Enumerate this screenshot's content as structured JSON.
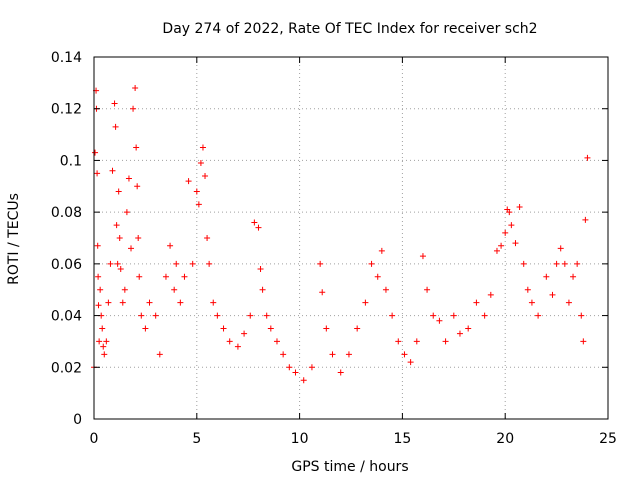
{
  "chart_data": {
    "type": "scatter",
    "title": "Day 274 of 2022, Rate Of TEC Index for receiver sch2",
    "xlabel": "GPS time / hours",
    "ylabel": "ROTI / TECUs",
    "xlim": [
      0,
      25
    ],
    "ylim": [
      0,
      0.14
    ],
    "x_ticks": [
      0,
      5,
      10,
      15,
      20,
      25
    ],
    "x_tick_labels": [
      "0",
      "5",
      "10",
      "15",
      "20",
      "25"
    ],
    "y_ticks": [
      0,
      0.02,
      0.04,
      0.06,
      0.08,
      0.1,
      0.12,
      0.14
    ],
    "y_tick_labels": [
      "0",
      "0.02",
      "0.04",
      "0.06",
      "0.08",
      "0.1",
      "0.12",
      "0.14"
    ],
    "grid": true,
    "marker": "plus",
    "marker_color": "#ff0000",
    "series": [
      {
        "x": [
          0.0,
          0.05,
          0.1,
          0.12,
          0.15,
          0.18,
          0.2,
          0.22,
          0.25,
          0.3,
          0.35,
          0.4,
          0.45,
          0.5,
          0.6,
          0.7,
          0.8,
          0.9,
          1.0,
          1.05,
          1.1,
          1.15,
          1.2,
          1.25,
          1.3,
          1.4,
          1.5,
          1.6,
          1.7,
          1.8,
          1.9,
          2.0,
          2.05,
          2.1,
          2.15,
          2.2,
          2.3,
          2.5,
          2.7,
          3.0,
          3.2,
          3.5,
          3.7,
          3.9,
          4.0,
          4.2,
          4.4,
          4.6,
          4.8,
          5.0,
          5.1,
          5.2,
          5.3,
          5.4,
          5.5,
          5.6,
          5.8,
          6.0,
          6.3,
          6.6,
          7.0,
          7.3,
          7.6,
          7.8,
          8.0,
          8.1,
          8.2,
          8.4,
          8.6,
          8.9,
          9.2,
          9.5,
          9.8,
          10.2,
          10.6,
          11.0,
          11.1,
          11.3,
          11.6,
          12.0,
          12.4,
          12.8,
          13.2,
          13.5,
          13.8,
          14.0,
          14.2,
          14.5,
          14.8,
          15.1,
          15.4,
          15.7,
          16.0,
          16.2,
          16.5,
          16.8,
          17.1,
          17.5,
          17.8,
          18.2,
          18.6,
          19.0,
          19.3,
          19.6,
          19.8,
          20.0,
          20.1,
          20.2,
          20.3,
          20.5,
          20.7,
          20.9,
          21.1,
          21.3,
          21.6,
          22.0,
          22.3,
          22.5,
          22.7,
          22.9,
          23.1,
          23.3,
          23.5,
          23.7,
          23.8,
          23.9,
          24.0
        ],
        "y": [
          0.02,
          0.103,
          0.127,
          0.12,
          0.095,
          0.067,
          0.055,
          0.044,
          0.03,
          0.05,
          0.04,
          0.035,
          0.028,
          0.025,
          0.03,
          0.045,
          0.06,
          0.096,
          0.122,
          0.113,
          0.075,
          0.06,
          0.088,
          0.07,
          0.058,
          0.045,
          0.05,
          0.08,
          0.093,
          0.066,
          0.12,
          0.128,
          0.105,
          0.09,
          0.07,
          0.055,
          0.04,
          0.035,
          0.045,
          0.04,
          0.025,
          0.055,
          0.067,
          0.05,
          0.06,
          0.045,
          0.055,
          0.092,
          0.06,
          0.088,
          0.083,
          0.099,
          0.105,
          0.094,
          0.07,
          0.06,
          0.045,
          0.04,
          0.035,
          0.03,
          0.028,
          0.033,
          0.04,
          0.076,
          0.074,
          0.058,
          0.05,
          0.04,
          0.035,
          0.03,
          0.025,
          0.02,
          0.018,
          0.015,
          0.02,
          0.06,
          0.049,
          0.035,
          0.025,
          0.018,
          0.025,
          0.035,
          0.045,
          0.06,
          0.055,
          0.065,
          0.05,
          0.04,
          0.03,
          0.025,
          0.022,
          0.03,
          0.063,
          0.05,
          0.04,
          0.038,
          0.03,
          0.04,
          0.033,
          0.035,
          0.045,
          0.04,
          0.048,
          0.065,
          0.067,
          0.072,
          0.081,
          0.08,
          0.075,
          0.068,
          0.082,
          0.06,
          0.05,
          0.045,
          0.04,
          0.055,
          0.048,
          0.06,
          0.066,
          0.06,
          0.045,
          0.055,
          0.06,
          0.04,
          0.03,
          0.077,
          0.101
        ]
      }
    ]
  }
}
